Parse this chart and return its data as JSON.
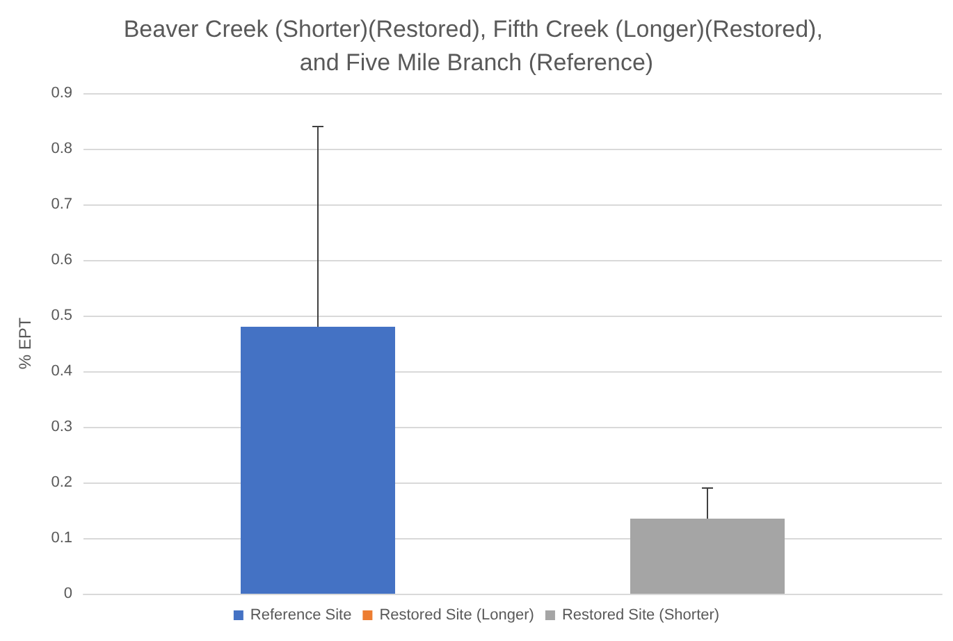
{
  "chart_data": {
    "type": "bar",
    "title": "Beaver Creek (Shorter)(Restored), Fifth Creek (Longer)(Restored), and Five Mile Branch (Reference)",
    "ylabel": "% EPT",
    "categories": [
      null
    ],
    "series": [
      {
        "name": "Reference Site",
        "color": "#4472c4",
        "values": [
          0.48
        ],
        "errors": [
          [
            0.48,
            0.84
          ]
        ]
      },
      {
        "name": "Restored Site (Longer)",
        "color": "#ed7d31",
        "values": [
          0
        ]
      },
      {
        "name": "Restored Site (Shorter)",
        "color": "#a5a5a5",
        "values": [
          0.135
        ],
        "errors": [
          [
            0.135,
            0.19
          ]
        ]
      }
    ],
    "ylim": [
      0,
      0.9
    ],
    "yticks": [
      0,
      0.1,
      0.2,
      0.3,
      0.4,
      0.5,
      0.6,
      0.7,
      0.8,
      0.9
    ],
    "grid": "y",
    "legend": "bottom"
  }
}
